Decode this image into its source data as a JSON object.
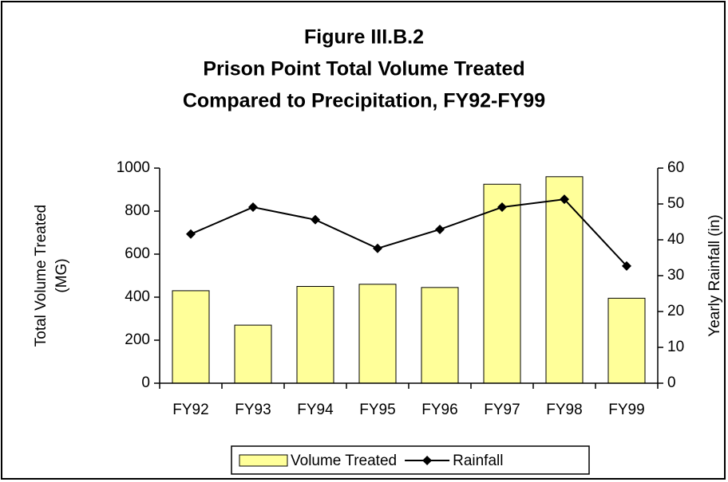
{
  "chart_data": {
    "type": "bar",
    "title": [
      "Figure III.B.2",
      "Prison Point Total Volume Treated",
      "Compared to Precipitation, FY92-FY99"
    ],
    "y_label": [
      "Total Volume Treated",
      "(MG)"
    ],
    "y2_label": "Yearly Rainfall (in)",
    "categories": [
      "FY92",
      "FY93",
      "FY94",
      "FY95",
      "FY96",
      "FY97",
      "FY98",
      "FY99"
    ],
    "series": [
      {
        "name": "Volume Treated",
        "type": "bar",
        "color": "#ffff99",
        "values": [
          430,
          270,
          450,
          460,
          445,
          925,
          960,
          395
        ]
      },
      {
        "name": "Rainfall",
        "type": "line",
        "axis": "y2",
        "color": "#000000",
        "values": [
          41.6,
          49.1,
          45.6,
          37.6,
          42.9,
          49.1,
          51.3,
          32.7
        ]
      }
    ],
    "ylim": [
      0,
      1000
    ],
    "yticks": [
      0,
      200,
      400,
      600,
      800,
      1000
    ],
    "y2lim": [
      0,
      60
    ],
    "y2ticks": [
      0,
      10,
      20,
      30,
      40,
      50,
      60
    ],
    "grid": false,
    "legend": "bottom"
  }
}
